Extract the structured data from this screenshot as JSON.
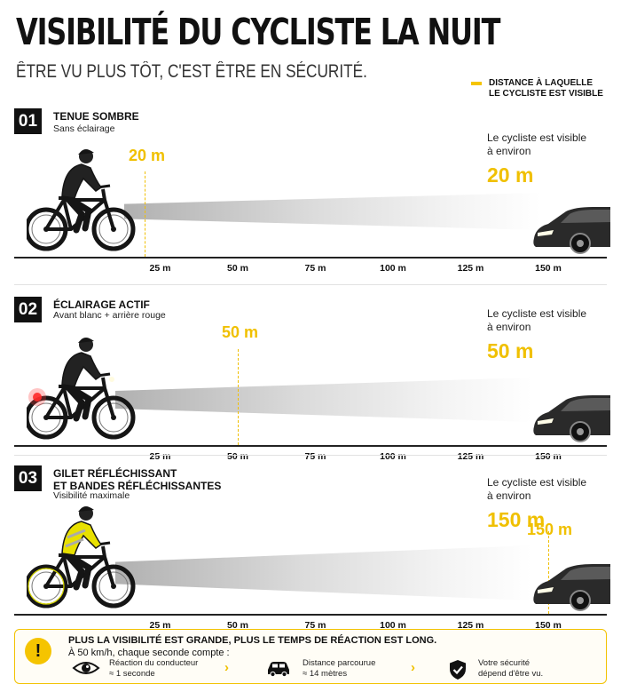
{
  "header": {
    "title": "VISIBILITÉ DU CYCLISTE LA NUIT",
    "subtitle": "ÊTRE VU PLUS TÔT, C'EST ÊTRE EN SÉCURITÉ."
  },
  "legend": {
    "line1": "DISTANCE À LAQUELLE",
    "line2": "LE CYCLISTE EST VISIBLE",
    "color": "#f5c400"
  },
  "axis_ticks": [
    "25 m",
    "50 m",
    "75 m",
    "100 m",
    "125 m",
    "150 m"
  ],
  "visibility_prefix": {
    "line1": "Le cycliste est visible",
    "line2": "à environ"
  },
  "scenarios": [
    {
      "number": "01",
      "title_lines": [
        "TENUE SOMBRE"
      ],
      "subtitle": "Sans éclairage",
      "distance_m": 20,
      "distance_label": "20 m",
      "marker_label": "20 m"
    },
    {
      "number": "02",
      "title_lines": [
        "ÉCLAIRAGE ACTIF"
      ],
      "subtitle": "Avant blanc + arrière rouge",
      "distance_m": 50,
      "distance_label": "50 m",
      "marker_label": "50 m"
    },
    {
      "number": "03",
      "title_lines": [
        "GILET RÉFLÉCHISSANT",
        "ET BANDES RÉFLÉCHISSANTES"
      ],
      "subtitle": "Visibilité maximale",
      "distance_m": 150,
      "distance_label": "150 m",
      "marker_label": "150 m"
    }
  ],
  "footer": {
    "title": "PLUS LA VISIBILITÉ EST GRANDE, PLUS LE TEMPS DE RÉACTION EST LONG.",
    "subtitle": "À 50 km/h, chaque seconde compte :",
    "items": [
      {
        "icon": "eye-icon",
        "line1": "Réaction du conducteur",
        "line2": "≈ 1 seconde"
      },
      {
        "icon": "car-icon",
        "line1": "Distance parcourue",
        "line2": "≈ 14 mètres"
      },
      {
        "icon": "shield-check-icon",
        "line1": "Votre sécurité",
        "line2": "dépend d'être vu."
      }
    ]
  },
  "colors": {
    "accent": "#f5c400",
    "dark": "#111111"
  }
}
